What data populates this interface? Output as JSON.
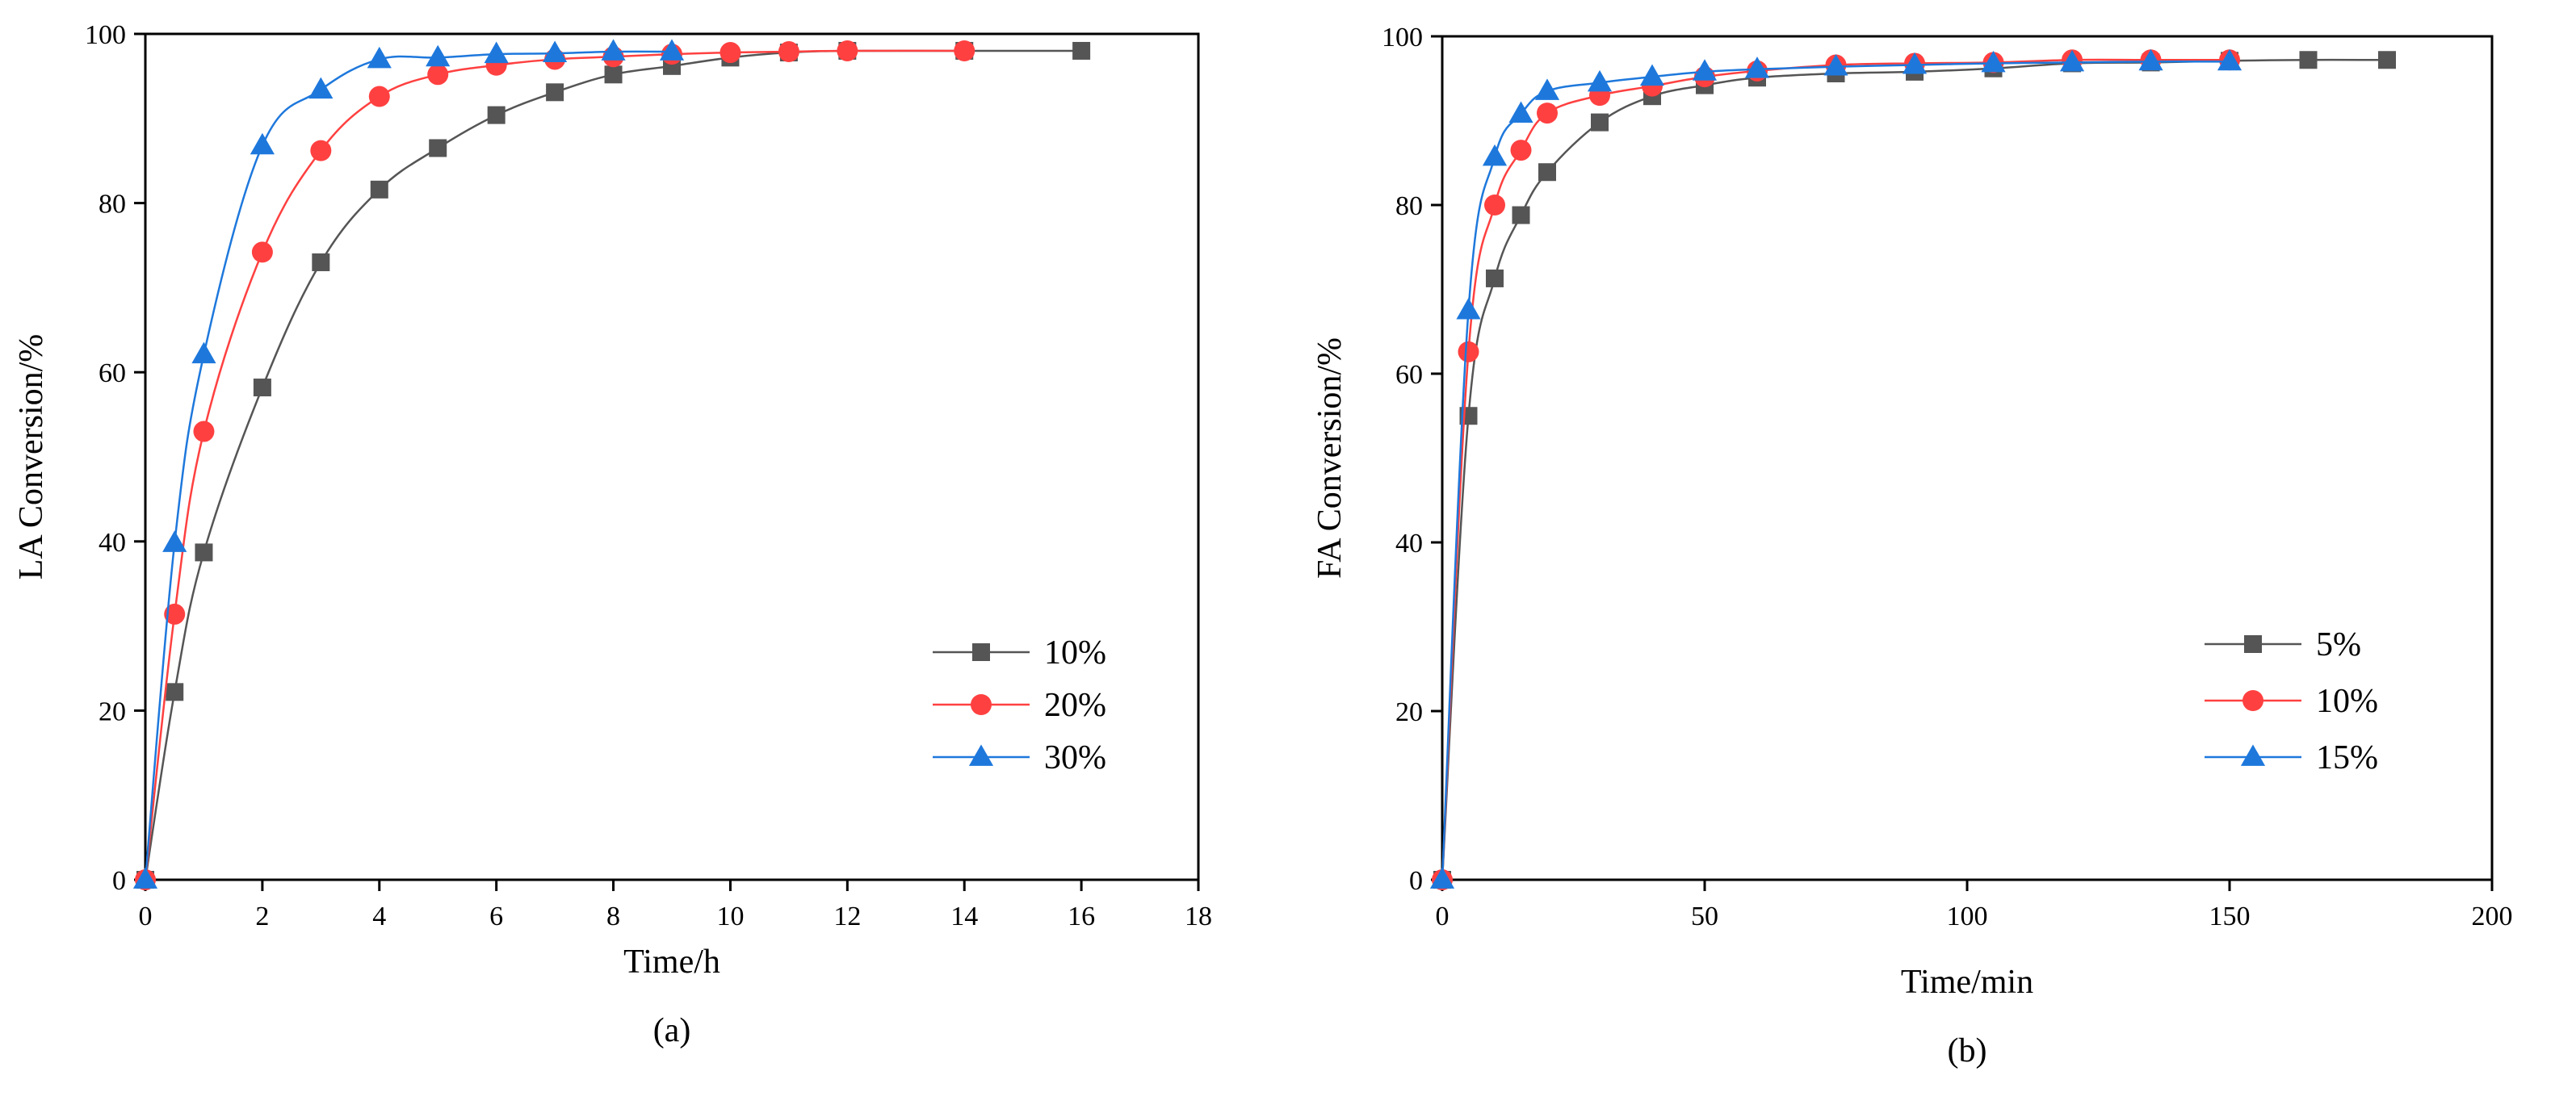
{
  "chart_data": [
    {
      "type": "line",
      "panel": "a",
      "caption": "(a)",
      "xlabel": "Time/h",
      "ylabel": "LA Conversion/%",
      "xlim": [
        0,
        18
      ],
      "ylim": [
        0,
        100
      ],
      "xticks": [
        0,
        2,
        4,
        6,
        8,
        10,
        12,
        14,
        16,
        18
      ],
      "yticks": [
        0,
        20,
        40,
        60,
        80,
        100
      ],
      "legend_position": "center-right",
      "series": [
        {
          "name": "10%",
          "color": "#555555",
          "marker": "square",
          "x": [
            0,
            0.5,
            1,
            2,
            3,
            4,
            5,
            6,
            7,
            8,
            9,
            10,
            11,
            12,
            14,
            16
          ],
          "y": [
            0,
            22.2,
            38.7,
            58.2,
            73.0,
            81.6,
            86.5,
            90.4,
            93.1,
            95.2,
            96.2,
            97.2,
            97.8,
            98.0,
            98.0,
            98.0
          ]
        },
        {
          "name": "20%",
          "color": "#ff4040",
          "marker": "circle",
          "x": [
            0,
            0.5,
            1,
            2,
            3,
            4,
            5,
            6,
            7,
            8,
            9,
            10,
            11,
            12,
            14
          ],
          "y": [
            0,
            31.4,
            53.0,
            74.2,
            86.2,
            92.6,
            95.2,
            96.3,
            97.0,
            97.3,
            97.6,
            97.8,
            97.9,
            98.0,
            98.0
          ]
        },
        {
          "name": "30%",
          "color": "#1e78dc",
          "marker": "triangle",
          "x": [
            0,
            0.5,
            1,
            2,
            3,
            4,
            5,
            6,
            7,
            8,
            9
          ],
          "y": [
            0,
            39.8,
            62.1,
            86.8,
            93.4,
            97.0,
            97.2,
            97.6,
            97.7,
            97.9,
            97.9
          ]
        }
      ]
    },
    {
      "type": "line",
      "panel": "b",
      "caption": "(b)",
      "xlabel": "Time/min",
      "ylabel": "FA Conversion/%",
      "xlim": [
        0,
        200
      ],
      "ylim": [
        0,
        100
      ],
      "xticks": [
        0,
        50,
        100,
        150,
        200
      ],
      "yticks": [
        0,
        20,
        40,
        60,
        80,
        100
      ],
      "legend_position": "center-right",
      "series": [
        {
          "name": "5%",
          "color": "#555555",
          "marker": "square",
          "x": [
            0,
            5,
            10,
            15,
            20,
            30,
            40,
            50,
            60,
            75,
            90,
            105,
            120,
            135,
            150,
            165,
            180
          ],
          "y": [
            0,
            55.0,
            71.3,
            78.8,
            83.9,
            89.8,
            92.9,
            94.2,
            95.1,
            95.6,
            95.8,
            96.2,
            96.8,
            96.9,
            97.1,
            97.2,
            97.2
          ]
        },
        {
          "name": "10%",
          "color": "#ff4040",
          "marker": "circle",
          "x": [
            0,
            5,
            10,
            15,
            20,
            30,
            40,
            50,
            60,
            75,
            90,
            105,
            120,
            135,
            150
          ],
          "y": [
            0,
            62.6,
            80.0,
            86.5,
            90.9,
            93.0,
            94.1,
            95.2,
            95.9,
            96.6,
            96.8,
            96.9,
            97.2,
            97.2,
            97.2
          ]
        },
        {
          "name": "15%",
          "color": "#1e78dc",
          "marker": "triangle",
          "x": [
            0,
            5,
            10,
            15,
            20,
            30,
            40,
            50,
            60,
            75,
            90,
            105,
            120,
            135,
            150
          ],
          "y": [
            0,
            67.5,
            85.7,
            90.8,
            93.5,
            94.5,
            95.2,
            95.8,
            96.1,
            96.4,
            96.6,
            96.8,
            96.9,
            97.0,
            97.0
          ]
        }
      ]
    }
  ]
}
